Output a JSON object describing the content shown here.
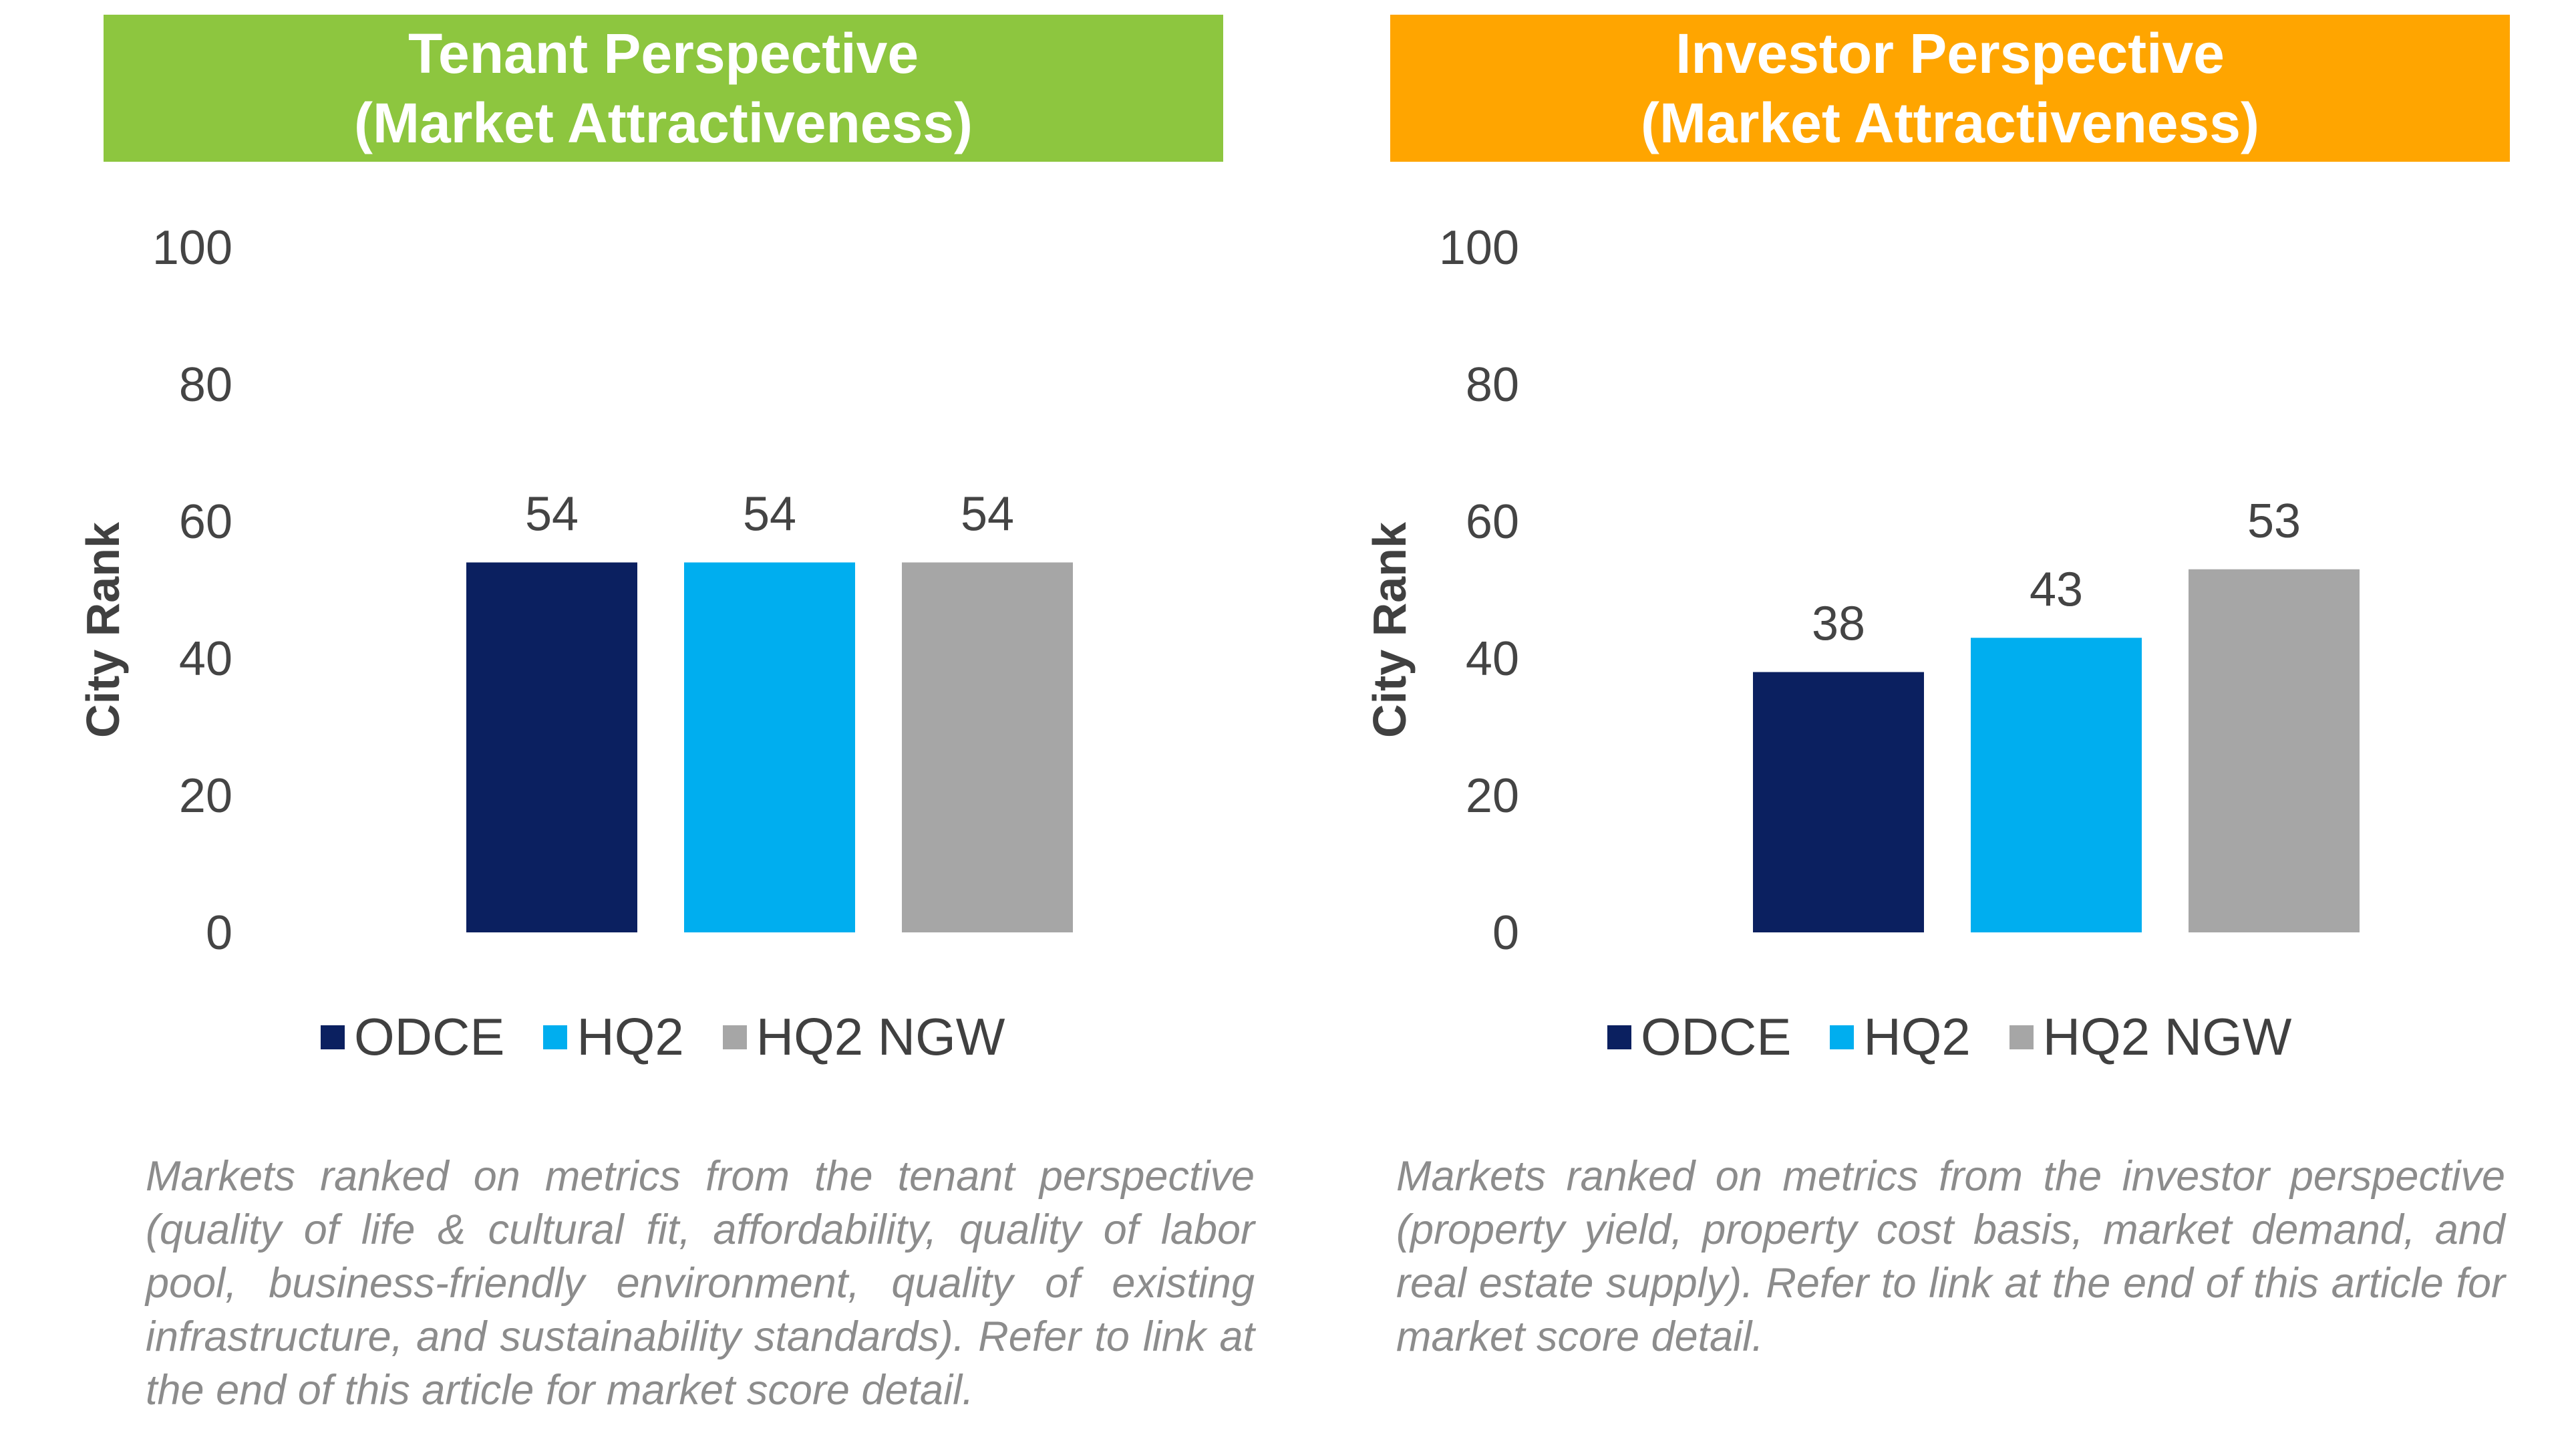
{
  "colors": {
    "tenant_banner": "#8dc63f",
    "investor_banner": "#ffa500",
    "odce": "#0b2060",
    "hq2": "#00aeef",
    "hq2_ngw": "#a6a6a6"
  },
  "panels": [
    {
      "banner_line1": "Tenant Perspective",
      "banner_line2": "(Market Attractiveness)",
      "caption": "Markets ranked on metrics from the tenant perspective (quality of life & cultural fit, affordability, quality of labor pool, business-friendly environment, quality of existing infrastructure, and sustainability standards). Refer to link at the end of this article for market score detail."
    },
    {
      "banner_line1": "Investor Perspective",
      "banner_line2": "(Market Attractiveness)",
      "caption": "Markets ranked on metrics from the investor perspective (property yield, property cost basis, market demand, and real estate supply). Refer to link at the end of this article for market score detail."
    }
  ],
  "chart_data": [
    {
      "type": "bar",
      "title": "Tenant Perspective (Market Attractiveness)",
      "categories": [
        "ODCE",
        "HQ2",
        "HQ2 NGW"
      ],
      "values": [
        54,
        54,
        54
      ],
      "ylabel": "City Rank",
      "ylim": [
        0,
        100
      ],
      "yticks": [
        "0",
        "20",
        "40",
        "60",
        "80",
        "100"
      ],
      "legend": [
        "ODCE",
        "HQ2",
        "HQ2 NGW"
      ],
      "legend_position": "bottom",
      "grid": false
    },
    {
      "type": "bar",
      "title": "Investor Perspective (Market Attractiveness)",
      "categories": [
        "ODCE",
        "HQ2",
        "HQ2 NGW"
      ],
      "values": [
        38,
        43,
        53
      ],
      "ylabel": "City Rank",
      "ylim": [
        0,
        100
      ],
      "yticks": [
        "0",
        "20",
        "40",
        "60",
        "80",
        "100"
      ],
      "legend": [
        "ODCE",
        "HQ2",
        "HQ2 NGW"
      ],
      "legend_position": "bottom",
      "grid": false
    }
  ]
}
